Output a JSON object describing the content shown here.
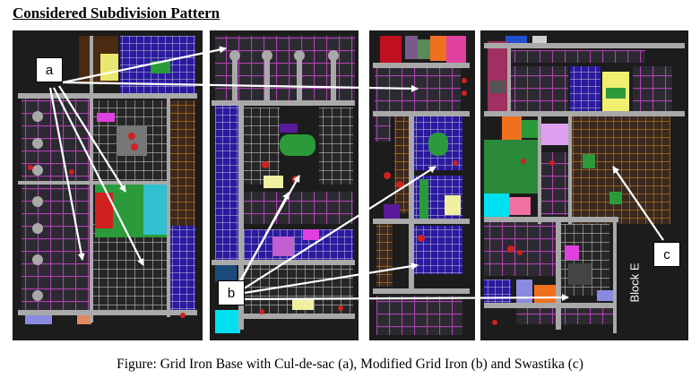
{
  "title": "Considered Subdivision Pattern",
  "callouts": {
    "a": "a",
    "b": "b",
    "c": "c"
  },
  "block_label": "Block E",
  "caption": "Figure: Grid Iron Base with Cul-de-sac (a), Modified Grid Iron (b) and Swastika (c)",
  "colors": {
    "background": "#1c1c1c",
    "road": "#a9a9a9",
    "plot_purple": "#8a2a8a",
    "plot_blue": "#2a1aa0",
    "green_space": "#2a9a3a",
    "plot_orange": "#c8781a",
    "pointer": "#ffffff"
  }
}
